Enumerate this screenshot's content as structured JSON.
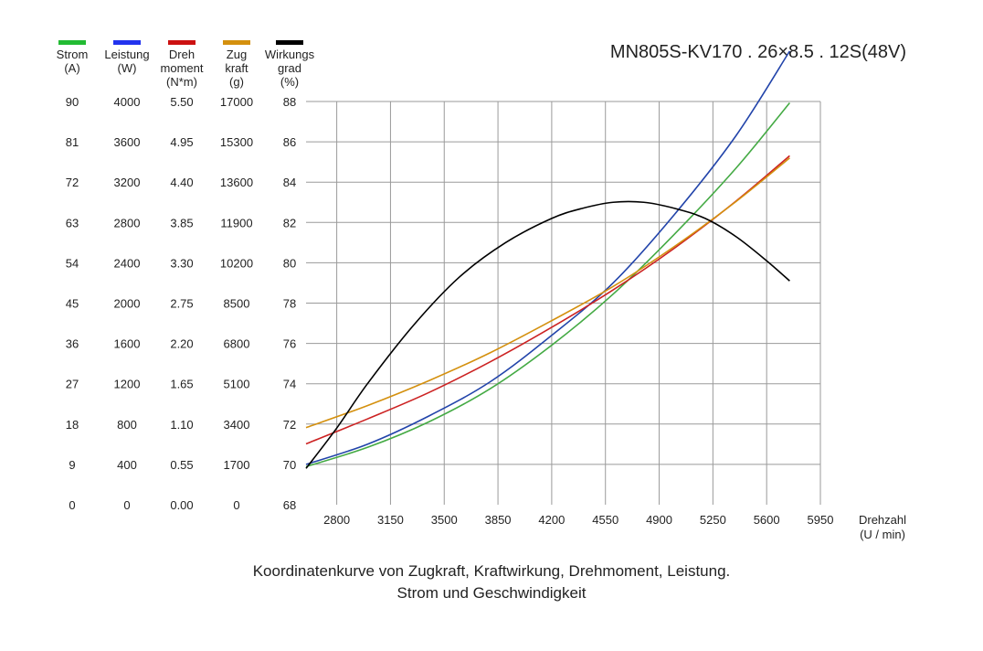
{
  "chart_data": {
    "type": "line",
    "title": "MN805S-KV170 . 26×8.5 . 12S(48V)",
    "caption_line1": "Koordinatenkurve von Zugkraft, Kraftwirkung, Drehmoment, Leistung.",
    "caption_line2": "Strom und Geschwindigkeit",
    "xlabel_line1": "Drehzahl",
    "xlabel_line2": "(U / min)",
    "x_ticks": [
      2800,
      3150,
      3500,
      3850,
      4200,
      4550,
      4900,
      5250,
      5600,
      5950
    ],
    "xlim": [
      2600,
      5950
    ],
    "grid": true,
    "axes": [
      {
        "key": "strom",
        "label": [
          "Strom",
          "(A)"
        ],
        "color": "#22bb33",
        "ticks": [
          "0",
          "9",
          "18",
          "27",
          "36",
          "45",
          "54",
          "63",
          "72",
          "81",
          "90"
        ],
        "min": 0,
        "max": 90
      },
      {
        "key": "leistung",
        "label": [
          "Leistung",
          "(W)"
        ],
        "color": "#2233ee",
        "ticks": [
          "0",
          "400",
          "800",
          "1200",
          "1600",
          "2000",
          "2400",
          "2800",
          "3200",
          "3600",
          "4000"
        ],
        "min": 0,
        "max": 4000
      },
      {
        "key": "drehmoment",
        "label": [
          "Dreh",
          "moment",
          "(N*m)"
        ],
        "color": "#cc1111",
        "ticks": [
          "0.00",
          "0.55",
          "1.10",
          "1.65",
          "2.20",
          "2.75",
          "3.30",
          "3.85",
          "4.40",
          "4.95",
          "5.50"
        ],
        "min": 0,
        "max": 5.5
      },
      {
        "key": "zugkraft",
        "label": [
          "Zug",
          "kraft",
          "(g)"
        ],
        "color": "#d4900e",
        "ticks": [
          "0",
          "1700",
          "3400",
          "5100",
          "6800",
          "8500",
          "10200",
          "11900",
          "13600",
          "15300",
          "17000"
        ],
        "min": 0,
        "max": 17000
      },
      {
        "key": "wirkungsgrad",
        "label": [
          "Wirkungs",
          "grad",
          "(%)"
        ],
        "color": "#000000",
        "ticks": [
          "68",
          "70",
          "72",
          "74",
          "76",
          "78",
          "80",
          "82",
          "84",
          "86",
          "88"
        ],
        "min": 68,
        "max": 88
      }
    ],
    "series": [
      {
        "axis": "strom",
        "color": "#44aa44",
        "x": [
          2600,
          3000,
          3400,
          3800,
          4200,
          4600,
          5000,
          5400,
          5750
        ],
        "y": [
          8.5,
          12.8,
          18.5,
          25.9,
          35.6,
          47.0,
          60.4,
          75.1,
          89.7
        ]
      },
      {
        "axis": "leistung",
        "color": "#2244aa",
        "x": [
          2600,
          3000,
          3400,
          3800,
          4200,
          4600,
          5000,
          5400,
          5750
        ],
        "y": [
          400,
          600,
          880,
          1220,
          1680,
          2200,
          2880,
          3660,
          4500
        ]
      },
      {
        "axis": "drehmoment",
        "color": "#cc2222",
        "x": [
          2600,
          3000,
          3400,
          3800,
          4200,
          4600,
          5000,
          5400,
          5750
        ],
        "y": [
          0.83,
          1.17,
          1.53,
          1.95,
          2.42,
          2.93,
          3.5,
          4.14,
          4.76
        ]
      },
      {
        "axis": "zugkraft",
        "color": "#d4900e",
        "x": [
          2600,
          3000,
          3400,
          3800,
          4200,
          4600,
          5000,
          5400,
          5750
        ],
        "y": [
          3250,
          4180,
          5230,
          6410,
          7760,
          9200,
          10890,
          12780,
          14620
        ]
      },
      {
        "axis": "wirkungsgrad",
        "color": "#000000",
        "x": [
          2600,
          2800,
          3000,
          3300,
          3600,
          3900,
          4200,
          4400,
          4600,
          4800,
          5000,
          5200,
          5400,
          5600,
          5750
        ],
        "y": [
          69.8,
          71.8,
          74.0,
          76.9,
          79.3,
          81.0,
          82.2,
          82.7,
          83.0,
          83.0,
          82.7,
          82.2,
          81.3,
          80.1,
          79.1
        ]
      }
    ]
  }
}
